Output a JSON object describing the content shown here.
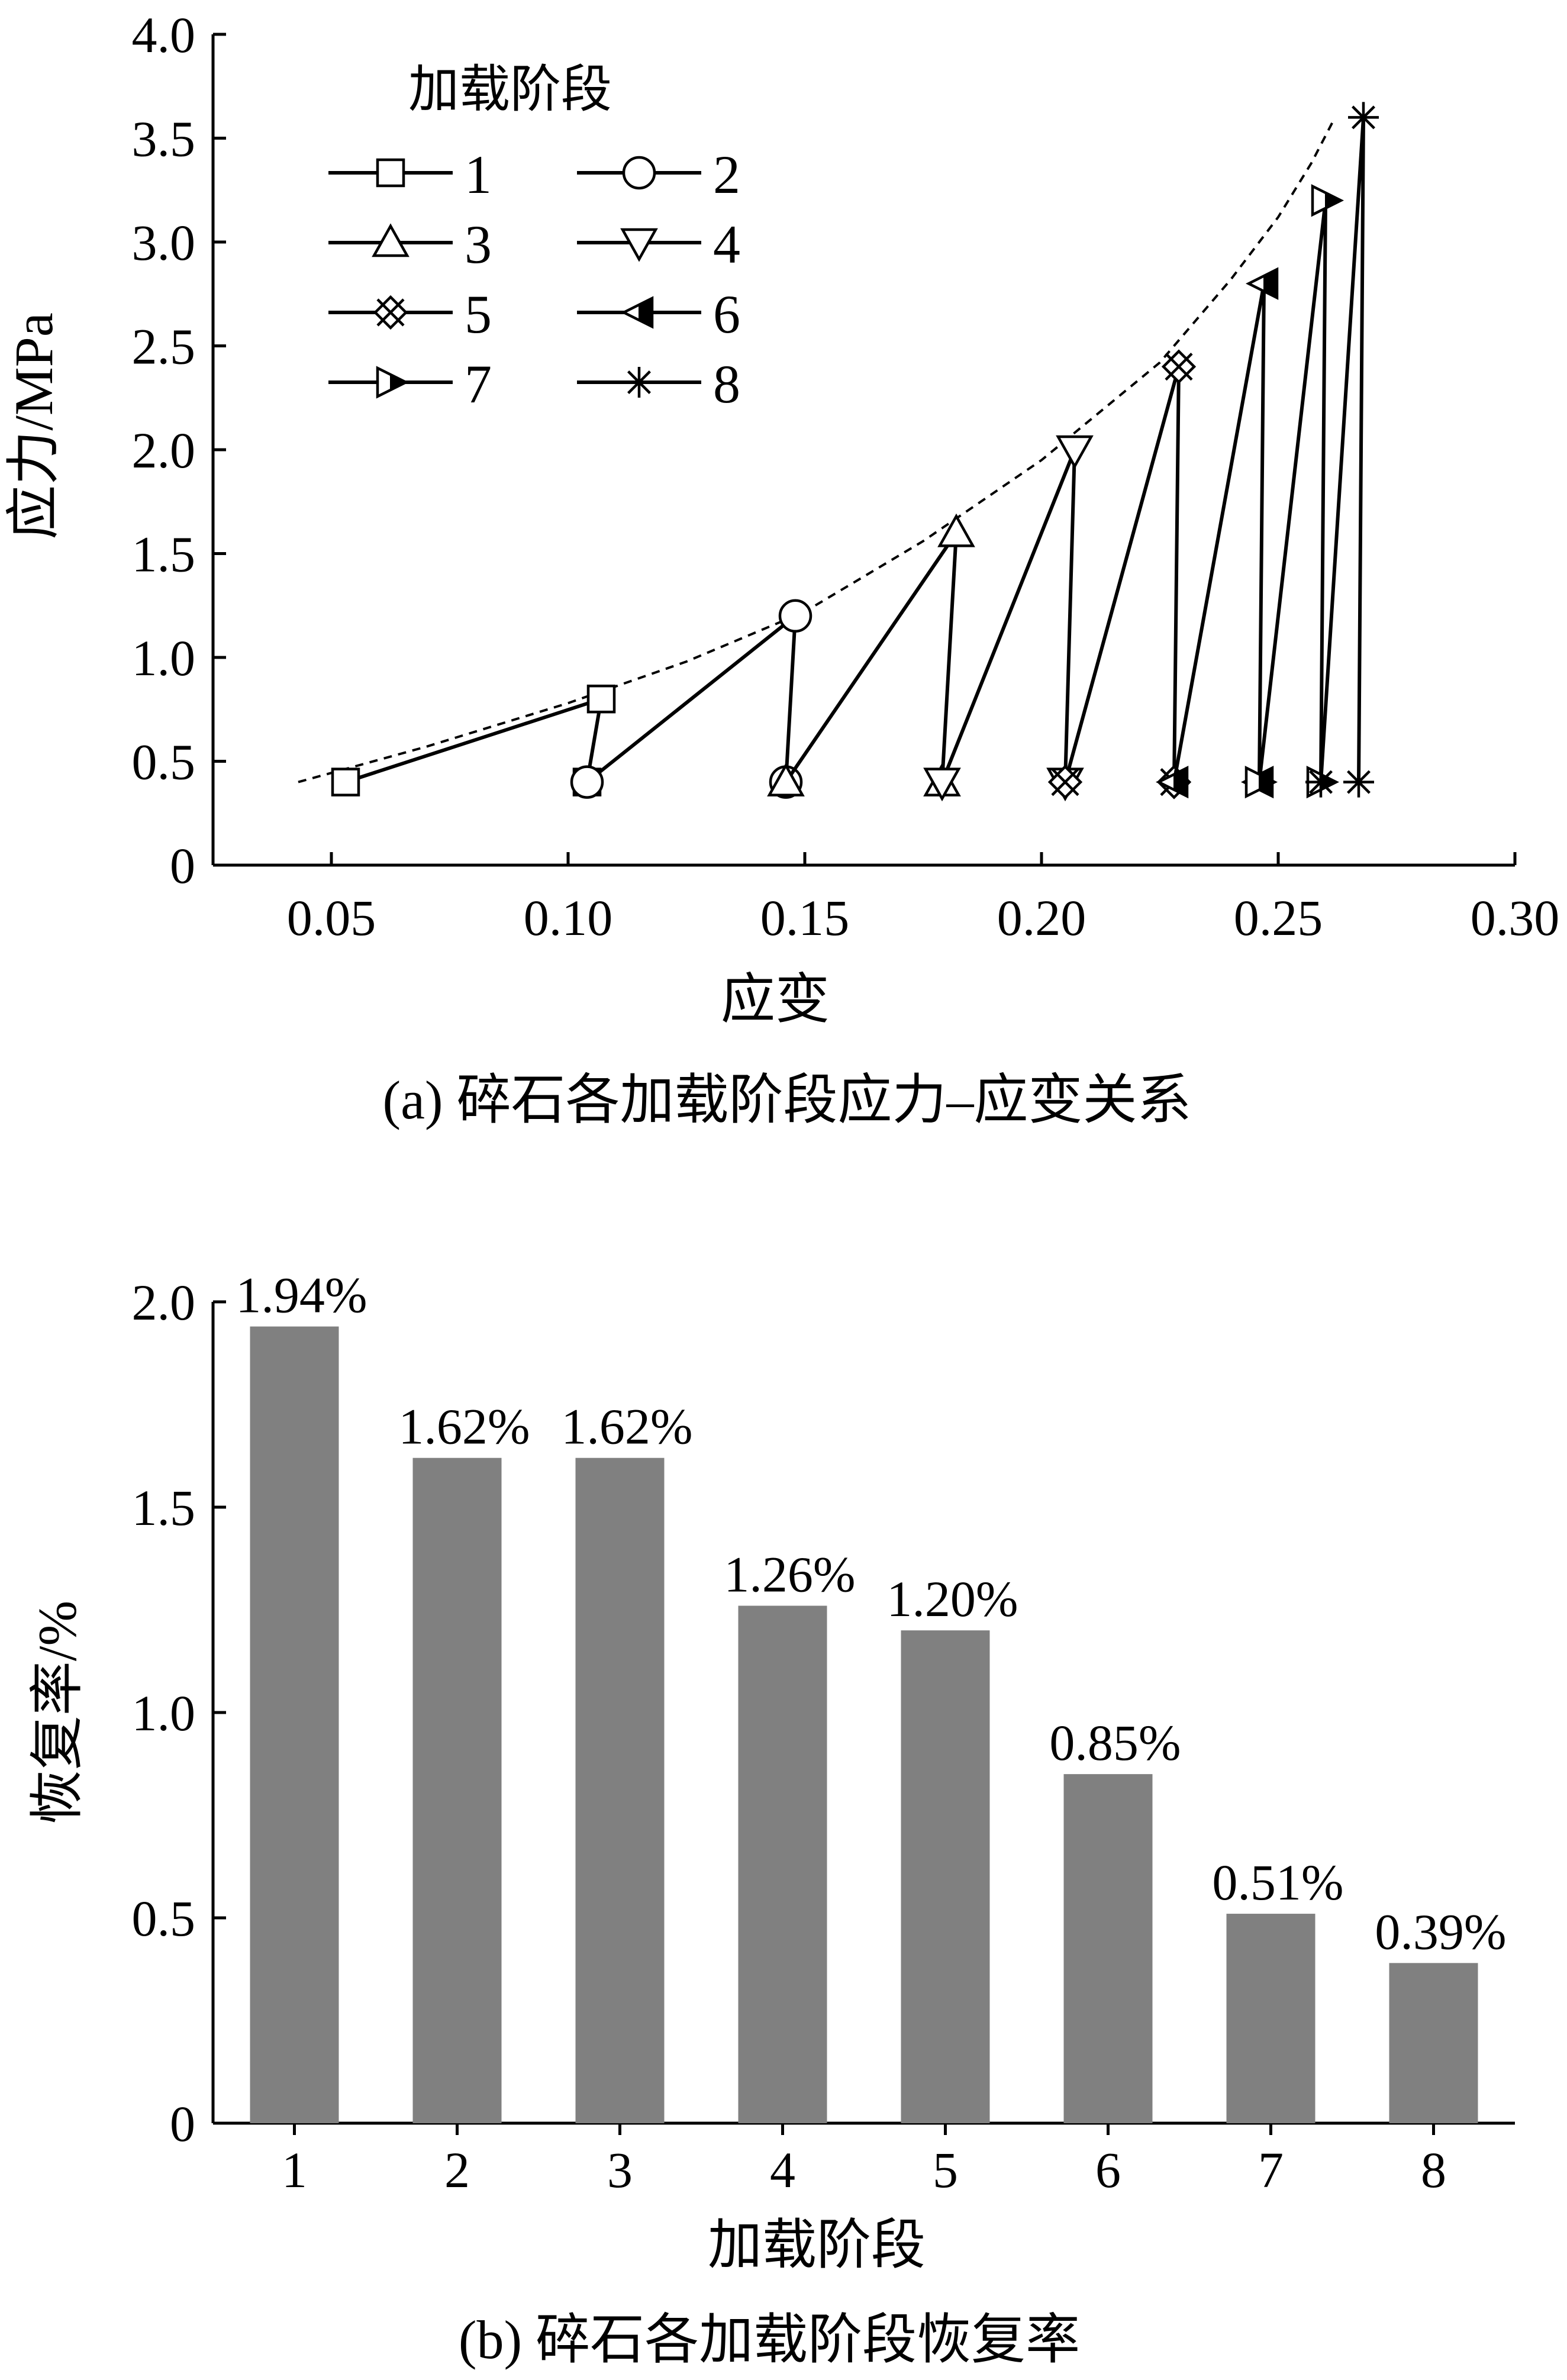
{
  "chart_data": [
    {
      "panel": "a",
      "type": "line",
      "caption": "(a)  碎石各加载阶段应力–应变关系",
      "xlabel": "应变",
      "ylabel": "应力/MPa",
      "xlim": [
        0.025,
        0.3
      ],
      "ylim": [
        0,
        4.0
      ],
      "x_ticks": [
        0.05,
        0.1,
        0.15,
        0.2,
        0.25,
        0.3
      ],
      "x_tick_labels": [
        "0.05",
        "0.10",
        "0.15",
        "0.20",
        "0.25",
        "0.30"
      ],
      "y_ticks": [
        0,
        0.5,
        1.0,
        1.5,
        2.0,
        2.5,
        3.0,
        3.5,
        4.0
      ],
      "y_tick_labels": [
        "0",
        "0.5",
        "1.0",
        "1.5",
        "2.0",
        "2.5",
        "3.0",
        "3.5",
        "4.0"
      ],
      "grid": false,
      "legend_title": "加载阶段",
      "legend_position": "top-left",
      "series": [
        {
          "name": "1",
          "marker": "square",
          "points": [
            [
              0.053,
              0.4
            ],
            [
              0.107,
              0.8
            ],
            [
              0.104,
              0.4
            ]
          ]
        },
        {
          "name": "2",
          "marker": "circle",
          "points": [
            [
              0.104,
              0.4
            ],
            [
              0.148,
              1.2
            ],
            [
              0.146,
              0.4
            ]
          ]
        },
        {
          "name": "3",
          "marker": "triangle-up",
          "points": [
            [
              0.146,
              0.4
            ],
            [
              0.182,
              1.6
            ],
            [
              0.179,
              0.4
            ]
          ]
        },
        {
          "name": "4",
          "marker": "triangle-down",
          "points": [
            [
              0.179,
              0.4
            ],
            [
              0.207,
              2.0
            ],
            [
              0.205,
              0.4
            ]
          ]
        },
        {
          "name": "5",
          "marker": "x-diamond",
          "points": [
            [
              0.205,
              0.4
            ],
            [
              0.229,
              2.4
            ],
            [
              0.228,
              0.4
            ]
          ]
        },
        {
          "name": "6",
          "marker": "triangle-left-half",
          "points": [
            [
              0.228,
              0.4
            ],
            [
              0.247,
              2.8
            ],
            [
              0.246,
              0.4
            ]
          ]
        },
        {
          "name": "7",
          "marker": "triangle-right-half",
          "points": [
            [
              0.246,
              0.4
            ],
            [
              0.26,
              3.2
            ],
            [
              0.259,
              0.4
            ]
          ]
        },
        {
          "name": "8",
          "marker": "asterisk",
          "points": [
            [
              0.259,
              0.4
            ],
            [
              0.268,
              3.6
            ],
            [
              0.267,
              0.4
            ]
          ]
        }
      ],
      "envelope": {
        "style": "dashed",
        "points": [
          [
            0.043,
            0.4
          ],
          [
            0.07,
            0.57
          ],
          [
            0.1,
            0.78
          ],
          [
            0.125,
            0.98
          ],
          [
            0.15,
            1.22
          ],
          [
            0.175,
            1.56
          ],
          [
            0.2,
            1.95
          ],
          [
            0.225,
            2.42
          ],
          [
            0.24,
            2.82
          ],
          [
            0.25,
            3.12
          ],
          [
            0.257,
            3.38
          ],
          [
            0.262,
            3.6
          ]
        ]
      }
    },
    {
      "panel": "b",
      "type": "bar",
      "caption": "(b)  碎石各加载阶段恢复率",
      "xlabel": "加载阶段",
      "ylabel": "恢复率/%",
      "categories": [
        "1",
        "2",
        "3",
        "4",
        "5",
        "6",
        "7",
        "8"
      ],
      "values": [
        1.94,
        1.62,
        1.62,
        1.26,
        1.2,
        0.85,
        0.51,
        0.39
      ],
      "data_labels": [
        "1.94%",
        "1.62%",
        "1.62%",
        "1.26%",
        "1.20%",
        "0.85%",
        "0.51%",
        "0.39%"
      ],
      "ylim": [
        0,
        2.0
      ],
      "y_ticks": [
        0,
        0.5,
        1.0,
        1.5,
        2.0
      ],
      "y_tick_labels": [
        "0",
        "0.5",
        "1.0",
        "1.5",
        "2.0"
      ],
      "bar_color": "#808080",
      "grid": false
    }
  ]
}
